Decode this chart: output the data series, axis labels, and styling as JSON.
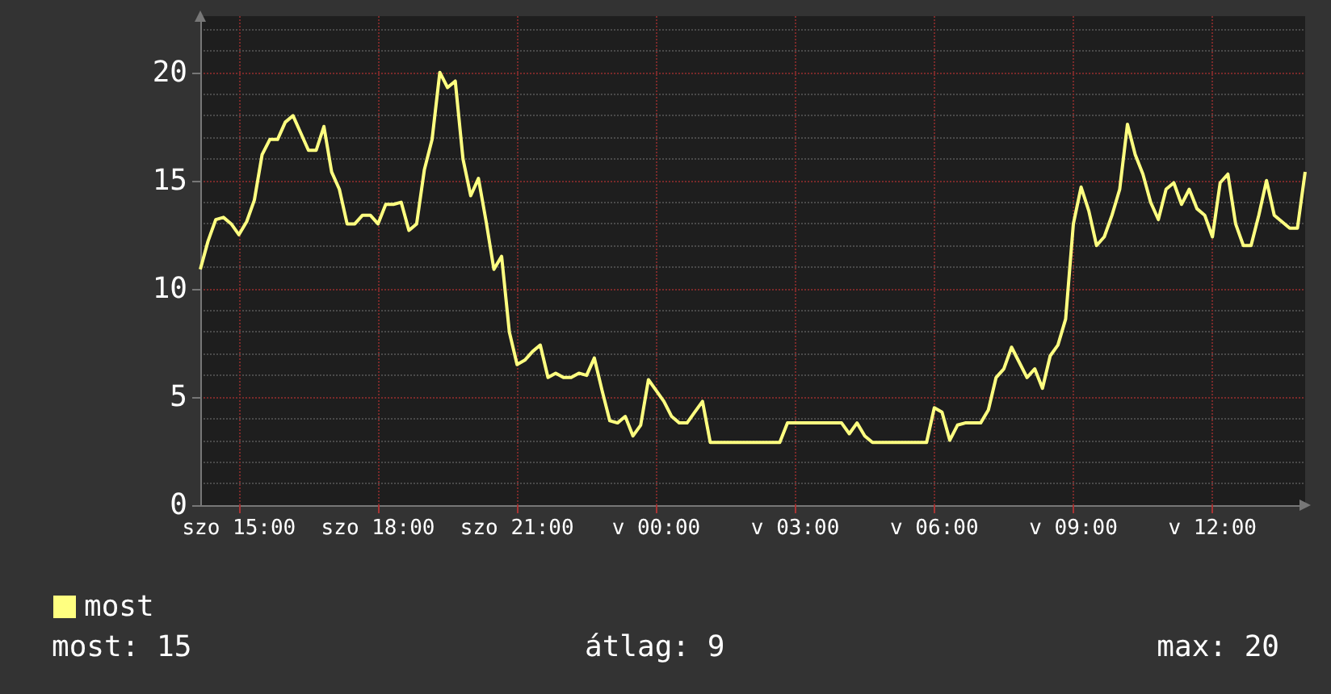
{
  "chart_data": {
    "type": "line",
    "categories": [
      null,
      null,
      null,
      null,
      null,
      "szo 15:00",
      null,
      null,
      null,
      null,
      null,
      null,
      null,
      null,
      null,
      null,
      null,
      null,
      null,
      null,
      null,
      null,
      null,
      "szo 18:00",
      null,
      null,
      null,
      null,
      null,
      null,
      null,
      null,
      null,
      null,
      null,
      null,
      null,
      null,
      null,
      null,
      null,
      "szo 21:00",
      null,
      null,
      null,
      null,
      null,
      null,
      null,
      null,
      null,
      null,
      null,
      null,
      null,
      null,
      null,
      null,
      null,
      "v 00:00",
      null,
      null,
      null,
      null,
      null,
      null,
      null,
      null,
      null,
      null,
      null,
      null,
      null,
      null,
      null,
      null,
      null,
      "v 03:00",
      null,
      null,
      null,
      null,
      null,
      null,
      null,
      null,
      null,
      null,
      null,
      null,
      null,
      null,
      null,
      null,
      null,
      "v 06:00",
      null,
      null,
      null,
      null,
      null,
      null,
      null,
      null,
      null,
      null,
      null,
      null,
      null,
      null,
      null,
      null,
      null,
      "v 09:00",
      null,
      null,
      null,
      null,
      null,
      null,
      null,
      null,
      null,
      null,
      null,
      null,
      null,
      null,
      null,
      null,
      null,
      "v 12:00",
      null,
      null,
      null,
      null,
      null,
      null,
      null,
      null,
      null,
      null,
      null,
      null
    ],
    "series": [
      {
        "name": "most",
        "color": "#ffff80",
        "values": [
          10.9,
          12.2,
          13.2,
          13.3,
          13.0,
          12.5,
          13.1,
          14.1,
          16.2,
          16.9,
          16.9,
          17.7,
          18,
          17.2,
          16.4,
          16.4,
          17.5,
          15.4,
          14.6,
          13.0,
          13.0,
          13.4,
          13.4,
          13.0,
          13.9,
          13.9,
          14.0,
          12.7,
          13.0,
          15.5,
          16.9,
          20,
          19.3,
          19.6,
          16.0,
          14.3,
          15.1,
          13.1,
          10.9,
          11.5,
          8.0,
          6.5,
          6.7,
          7.1,
          7.4,
          5.9,
          6.1,
          5.9,
          5.9,
          6.1,
          6.0,
          6.8,
          5.3,
          3.9,
          3.8,
          4.1,
          3.2,
          3.7,
          5.8,
          5.3,
          4.8,
          4.1,
          3.8,
          3.8,
          4.3,
          4.8,
          2.9,
          2.9,
          2.9,
          2.9,
          2.9,
          2.9,
          2.9,
          2.9,
          2.9,
          2.9,
          3.8,
          3.8,
          3.8,
          3.8,
          3.8,
          3.8,
          3.8,
          3.8,
          3.3,
          3.8,
          3.2,
          2.9,
          2.9,
          2.9,
          2.9,
          2.9,
          2.9,
          2.9,
          2.9,
          4.5,
          4.3,
          3.0,
          3.7,
          3.8,
          3.8,
          3.8,
          4.4,
          5.9,
          6.3,
          7.3,
          6.6,
          5.9,
          6.3,
          5.4,
          6.9,
          7.4,
          8.6,
          13.0,
          14.7,
          13.6,
          12.0,
          12.4,
          13.4,
          14.6,
          17.6,
          16.2,
          15.3,
          14.0,
          13.2,
          14.6,
          14.9,
          13.9,
          14.6,
          13.7,
          13.4,
          12.4,
          14.9,
          15.3,
          13.0,
          12.0,
          12.0,
          13.4,
          15.0,
          13.4,
          13.1,
          12.8,
          12.8,
          15.4
        ]
      }
    ],
    "ylim": [
      0,
      22.6
    ],
    "yticks": [
      0,
      5,
      10,
      15,
      20
    ],
    "grid": true,
    "legend": "bottom left",
    "marker": "none",
    "line_style": "solid",
    "annotations": [
      "most: 15",
      "átlag: 9",
      "max: 20"
    ]
  }
}
